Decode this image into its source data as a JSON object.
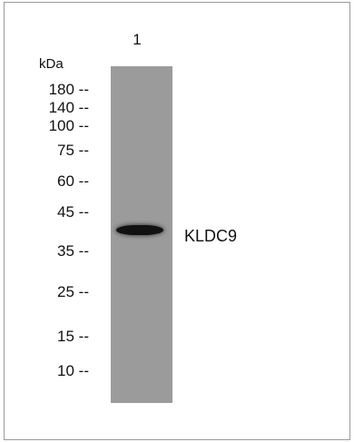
{
  "lane_label": "1",
  "unit_label": "kDa",
  "markers": [
    {
      "label": "180 --",
      "kda": 180
    },
    {
      "label": "140 --",
      "kda": 140
    },
    {
      "label": "100 --",
      "kda": 100
    },
    {
      "label": "75 --",
      "kda": 75
    },
    {
      "label": "60 --",
      "kda": 60
    },
    {
      "label": "45 --",
      "kda": 45
    },
    {
      "label": "35 --",
      "kda": 35
    },
    {
      "label": "25 --",
      "kda": 25
    },
    {
      "label": "15 --",
      "kda": 15
    },
    {
      "label": "10 --",
      "kda": 10
    }
  ],
  "band": {
    "label": "KLDC9"
  },
  "colors": {
    "lane": "#9b9b9b",
    "band": "#111111",
    "border": "#9a9a9a"
  }
}
